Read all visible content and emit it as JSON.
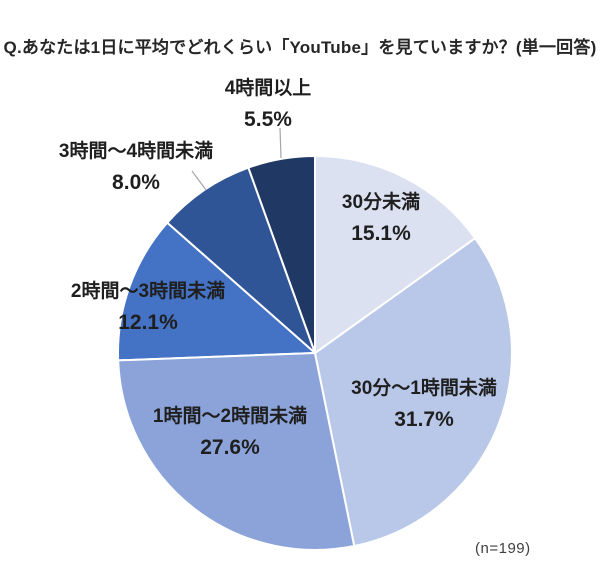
{
  "title": "Q.あなたは1日に平均でどれくらい「YouTube」を見ていますか？(単一回答)",
  "sample_size": "(n=199)",
  "chart_data": {
    "type": "pie",
    "title": "Q.あなたは1日に平均でどれくらい「YouTube」を見ていますか？(単一回答)",
    "sample_size": "(n=199)",
    "start_angle_deg": -90,
    "direction": "clockwise",
    "legend_position": "none",
    "slices": [
      {
        "id": "under-30min",
        "label": "30分未満",
        "value": 15.1,
        "pct_label": "15.1%",
        "color": "#dbe1f1"
      },
      {
        "id": "30min-to-1h",
        "label": "30分〜1時間未満",
        "value": 31.7,
        "pct_label": "31.7%",
        "color": "#b9c8e9"
      },
      {
        "id": "1h-to-2h",
        "label": "1時間〜2時間未満",
        "value": 27.6,
        "pct_label": "27.6%",
        "color": "#8ca3da"
      },
      {
        "id": "2h-to-3h",
        "label": "2時間〜3時間未満",
        "value": 12.1,
        "pct_label": "12.1%",
        "color": "#4472c4"
      },
      {
        "id": "3h-to-4h",
        "label": "3時間〜4時間未満",
        "value": 8.0,
        "pct_label": "8.0%",
        "color": "#2f5597"
      },
      {
        "id": "over-4h",
        "label": "4時間以上",
        "value": 5.5,
        "pct_label": "5.5%",
        "color": "#1f3864"
      }
    ],
    "leader_line_color": "#a6a6a6"
  }
}
